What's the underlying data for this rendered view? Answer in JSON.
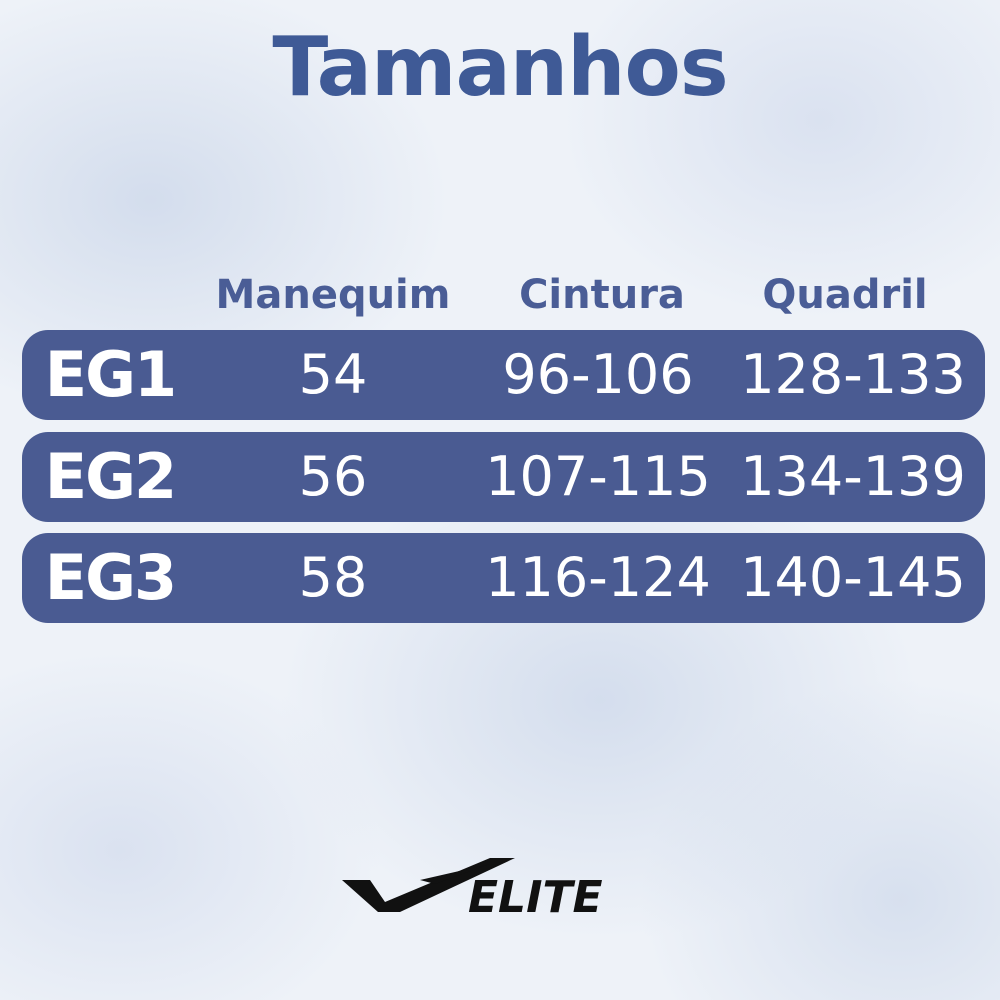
{
  "title": "Tamanhos",
  "table": {
    "header": [
      "Manequim",
      "Cintura",
      "Quadril"
    ],
    "rows": [
      [
        "EG1",
        54,
        "96-106",
        "128-133"
      ],
      [
        "EG2",
        56,
        "107-115",
        "134-139"
      ],
      [
        "EG3",
        58,
        "116-124",
        "140-145"
      ]
    ]
  },
  "logo": {
    "text": "ELITE"
  }
}
